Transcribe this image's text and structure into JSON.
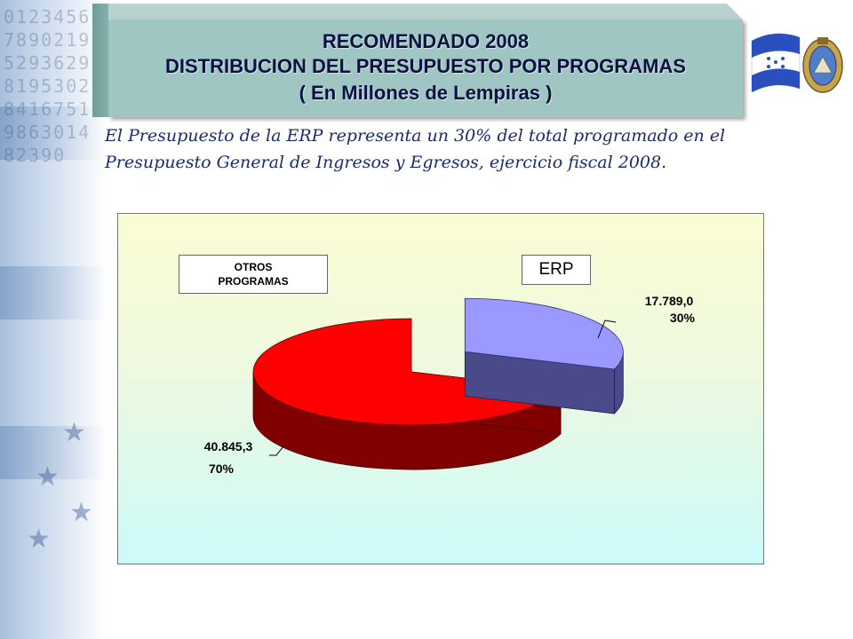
{
  "header": {
    "line1": "RECOMENDADO 2008",
    "line2": "DISTRIBUCION DEL PRESUPUESTO POR PROGRAMAS",
    "line3": "( En Millones de Lempiras )"
  },
  "intro_text": {
    "line1": "El Presupuesto de la ERP representa un 30% del total programado en el",
    "line2": "Presupuesto General de Ingresos y Egresos, ejercicio fiscal 2008."
  },
  "decor": {
    "digits": "01234567890219529362981953028416751986301482390"
  },
  "colors": {
    "erp_top": "#9999ff",
    "erp_side": "#4a4a8a",
    "otros_top": "#ff0000",
    "otros_side": "#800000",
    "title_bg": "#9fc6c2",
    "title_text": "#0b1140"
  },
  "chart_data": {
    "type": "pie",
    "three_d": true,
    "title": "",
    "series": [
      {
        "name": "ERP",
        "value": 17789.0,
        "value_label": "17.789,0",
        "percent": 30,
        "percent_label": "30%",
        "color": "#9999ff"
      },
      {
        "name": "OTROS PROGRAMAS",
        "value": 40845.3,
        "value_label": "40.845,3",
        "percent": 70,
        "percent_label": "70%",
        "color": "#ff0000"
      }
    ],
    "legend": {
      "otros_line1": "OTROS",
      "otros_line2": "PROGRAMAS",
      "erp": "ERP"
    },
    "exploded_slice": "ERP"
  }
}
